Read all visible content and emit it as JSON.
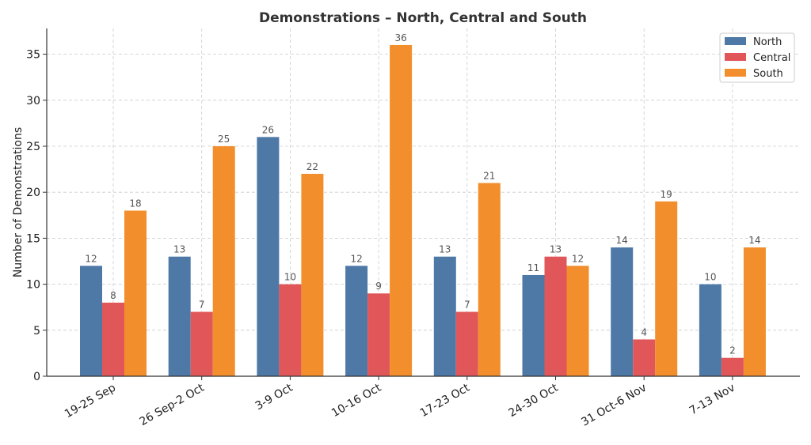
{
  "chart_data": {
    "type": "bar",
    "title": "Demonstrations – North, Central and South",
    "xlabel": "",
    "ylabel": "Number of Demonstrations",
    "ylim": [
      0,
      37.8
    ],
    "yticks": [
      0,
      5,
      10,
      15,
      20,
      25,
      30,
      35
    ],
    "grid": true,
    "legend_position": "top-right",
    "categories": [
      "19-25 Sep",
      "26 Sep-2 Oct",
      "3-9 Oct",
      "10-16 Oct",
      "17-23 Oct",
      "24-30 Oct",
      "31 Oct-6 Nov",
      "7-13 Nov"
    ],
    "series": [
      {
        "name": "North",
        "color": "#4e79a7",
        "values": [
          12,
          13,
          26,
          12,
          13,
          11,
          14,
          10
        ]
      },
      {
        "name": "Central",
        "color": "#e15759",
        "values": [
          8,
          7,
          10,
          9,
          7,
          13,
          4,
          2
        ]
      },
      {
        "name": "South",
        "color": "#f28e2b",
        "values": [
          18,
          25,
          22,
          36,
          21,
          12,
          19,
          14
        ]
      }
    ]
  }
}
